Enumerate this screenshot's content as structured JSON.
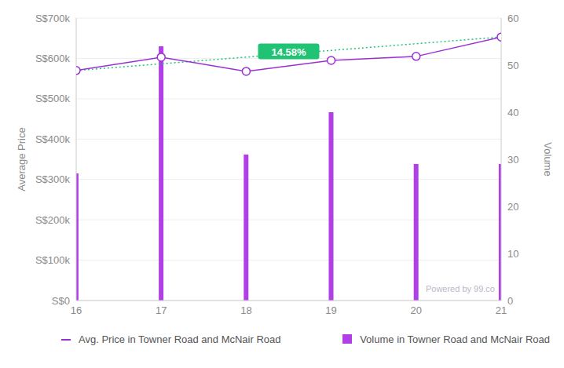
{
  "chart_data": {
    "type": "combo",
    "x": [
      16,
      17,
      18,
      19,
      20,
      21
    ],
    "xlim": [
      16,
      21
    ],
    "xticks": [
      16,
      17,
      18,
      19,
      20,
      21
    ],
    "ylim": [
      0,
      700000
    ],
    "yticks": [
      {
        "value": 0,
        "label": "S$0"
      },
      {
        "value": 100000,
        "label": "S$100k"
      },
      {
        "value": 200000,
        "label": "S$200k"
      },
      {
        "value": 300000,
        "label": "S$300k"
      },
      {
        "value": 400000,
        "label": "S$400k"
      },
      {
        "value": 500000,
        "label": "S$500k"
      },
      {
        "value": 600000,
        "label": "S$600k"
      },
      {
        "value": 700000,
        "label": "S$700k"
      }
    ],
    "y2lim": [
      0,
      60
    ],
    "y2ticks": [
      0,
      10,
      20,
      30,
      40,
      50,
      60
    ],
    "y_label": "Average Price",
    "y2_label": "Volume",
    "grid": true,
    "legend": "bottom",
    "series": [
      {
        "name": "Avg. Price in Towner Road and McNair Road",
        "type": "line",
        "color": "#9b2fd6",
        "marker": "circle",
        "values": [
          570000,
          603000,
          568000,
          595000,
          605000,
          653000
        ]
      },
      {
        "name": "Volume in Towner Road and McNair Road",
        "type": "bar",
        "axis": "y2",
        "color": "#b13fe8",
        "values": [
          27,
          54,
          31,
          40,
          29,
          29
        ]
      }
    ],
    "annotations": [
      {
        "text": "14.58%",
        "color": "#20c374",
        "line_style": "dotted"
      }
    ],
    "credit": "Powered by 99.co"
  }
}
